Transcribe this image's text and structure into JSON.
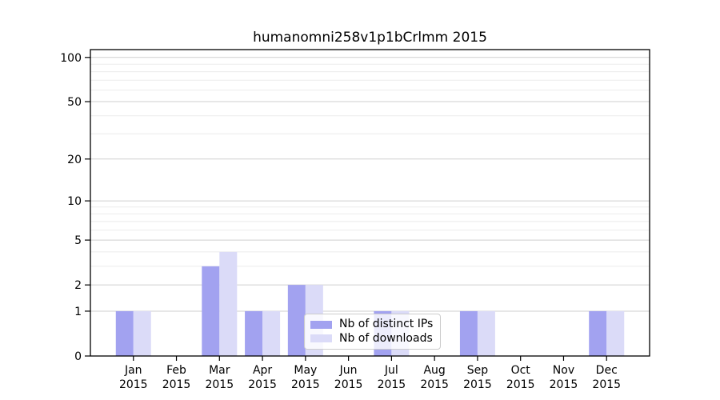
{
  "chart_data": {
    "type": "bar",
    "title": "humanomni258v1p1bCrlmm 2015",
    "xlabel": "",
    "ylabel": "",
    "categories": [
      "Jan",
      "Feb",
      "Mar",
      "Apr",
      "May",
      "Jun",
      "Jul",
      "Aug",
      "Sep",
      "Oct",
      "Nov",
      "Dec"
    ],
    "year_label": "2015",
    "series": [
      {
        "name": "Nb of distinct IPs",
        "color": "#a2a2f0",
        "values": [
          1,
          0,
          3,
          1,
          2,
          0,
          1,
          0,
          1,
          0,
          0,
          1
        ]
      },
      {
        "name": "Nb of downloads",
        "color": "#dbdbf8",
        "values": [
          1,
          0,
          4,
          1,
          2,
          0,
          1,
          0,
          1,
          0,
          0,
          1
        ]
      }
    ],
    "yscale": "log1p",
    "yticks": [
      0,
      1,
      2,
      5,
      10,
      20,
      50,
      100
    ],
    "yminorticks": [
      3,
      4,
      6,
      7,
      8,
      9,
      30,
      40,
      60,
      70,
      80,
      90
    ],
    "ylim": [
      0,
      113
    ],
    "grid": "horizontal, major and minor, behind bars",
    "legend_position": "inside plot, lower center"
  }
}
